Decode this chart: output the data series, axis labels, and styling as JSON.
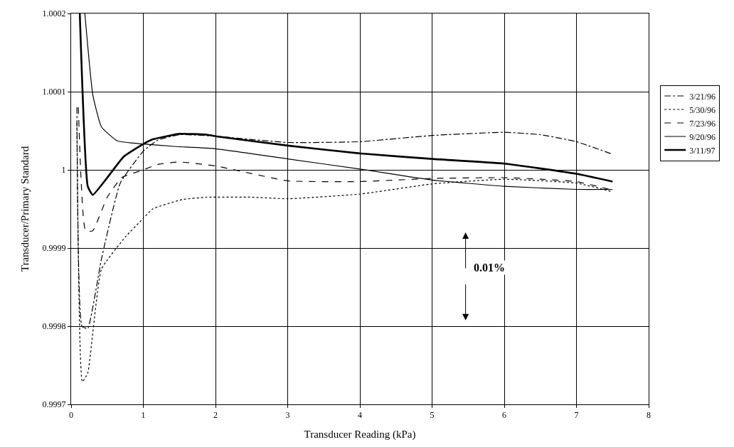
{
  "chart_data": {
    "type": "line",
    "xlabel": "Transducer Reading (kPa)",
    "ylabel": "Transducer/Primary Standard",
    "xlim": [
      0,
      8
    ],
    "xticks": [
      0,
      1,
      2,
      3,
      4,
      5,
      6,
      7,
      8
    ],
    "ylim": [
      0.9997,
      1.0002
    ],
    "yticks": [
      {
        "value": 0.9997,
        "label": "0.9997"
      },
      {
        "value": 0.9998,
        "label": "0.9998"
      },
      {
        "value": 0.9999,
        "label": "0.9999"
      },
      {
        "value": 1,
        "label": "1"
      },
      {
        "value": 1.0001,
        "label": "1.0001"
      },
      {
        "value": 1.0002,
        "label": "1.0002"
      }
    ],
    "grid": true,
    "legend": "right",
    "marker": "none",
    "annotations": [
      "0.01%"
    ],
    "series": [
      {
        "name": "3/21/96",
        "color": "#000000",
        "line_style": "dashdot",
        "x": [
          0.08,
          0.15,
          0.23,
          0.42,
          0.68,
          1.0,
          1.2,
          1.5,
          2,
          3,
          4,
          5,
          6,
          6.5,
          7,
          7.5
        ],
        "values": [
          1.00008,
          0.9998,
          0.999797,
          0.999886,
          0.999983,
          1.000024,
          1.000038,
          1.000045,
          1.000043,
          1.000035,
          1.000036,
          1.000044,
          1.000048,
          1.000045,
          1.000036,
          1.00002
        ]
      },
      {
        "name": "5/30/96",
        "color": "#000000",
        "line_style": "dotted",
        "x": [
          0.08,
          0.155,
          0.23,
          0.42,
          0.75,
          1.0,
          1.13,
          1.54,
          1.88,
          2.5,
          3,
          4,
          5,
          6,
          7,
          7.5
        ],
        "values": [
          1.00006,
          0.999729,
          0.99974,
          0.999873,
          0.999914,
          0.999938,
          0.99995,
          0.999962,
          0.999965,
          0.999965,
          0.999963,
          0.999969,
          0.999982,
          0.999988,
          0.999983,
          0.999972
        ]
      },
      {
        "name": "7/23/96",
        "color": "#000000",
        "line_style": "dashed",
        "x": [
          0.1,
          0.2,
          0.3,
          0.5,
          0.7,
          1.0,
          1.2,
          1.5,
          2,
          3,
          4,
          5,
          6,
          6.5,
          7,
          7.5
        ],
        "values": [
          1.00008,
          0.999922,
          0.999922,
          0.999965,
          0.99999,
          1.0,
          1.000007,
          1.00001,
          1.000005,
          0.999986,
          0.999985,
          0.999989,
          0.99999,
          0.999988,
          0.999985,
          0.999974
        ]
      },
      {
        "name": "9/20/96",
        "color": "#000000",
        "line_style": "solid",
        "x": [
          0.19,
          0.3,
          0.42,
          0.64,
          1.0,
          1.43,
          2,
          3,
          4,
          5,
          6,
          7,
          7.5
        ],
        "values": [
          1.0002,
          1.000096,
          1.000055,
          1.000037,
          1.000033,
          1.00003,
          1.000027,
          1.000014,
          1.000001,
          0.999987,
          0.999979,
          0.999975,
          0.999975
        ]
      },
      {
        "name": "3/11/97",
        "color": "#000000",
        "line_style": "solid",
        "x": [
          0.12,
          0.23,
          0.3,
          0.73,
          1.0,
          1.13,
          1.5,
          1.88,
          2,
          3,
          4,
          5,
          6,
          7,
          7.5
        ],
        "values": [
          1.0002,
          0.999979,
          0.999968,
          1.000017,
          1.000033,
          1.000039,
          1.000046,
          1.000045,
          1.000043,
          1.000031,
          1.000021,
          1.000014,
          1.000008,
          0.999995,
          0.999985
        ]
      }
    ]
  }
}
